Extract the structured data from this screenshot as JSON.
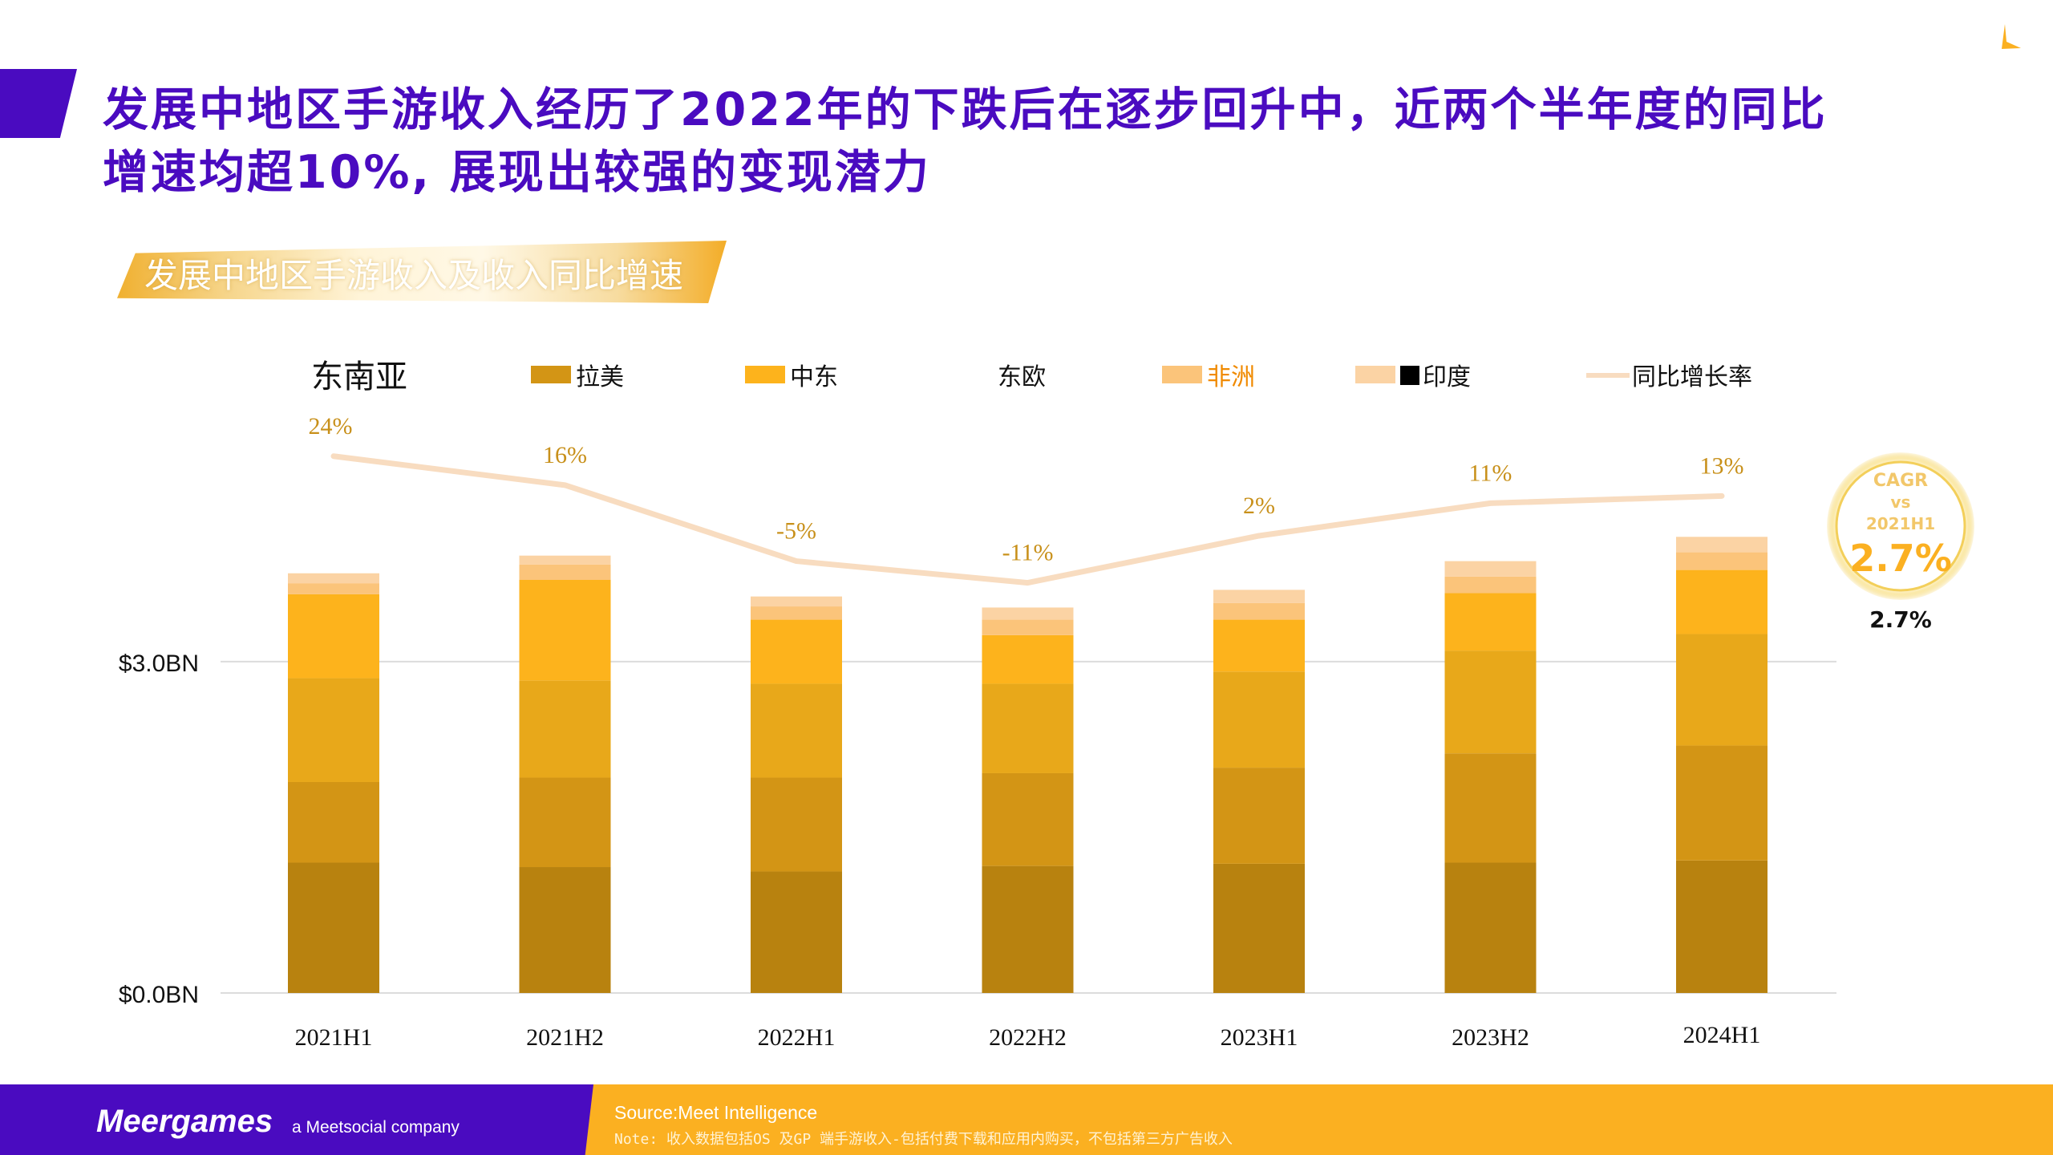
{
  "header": {
    "title_line1": "发展中地区手游收入经历了2022年的下跌后在逐步回升中，近两个半年度的同比",
    "title_line2": "增速均超10%, 展现出较强的变现潜力",
    "banner": "发展中地区手游收入及收入同比增速"
  },
  "badge": {
    "line1": "CAGR",
    "line2": "vs",
    "line3": "2021H1",
    "value": "2.7%"
  },
  "footer": {
    "brand": "Meergames",
    "brand_sub": "a Meetsocial company",
    "source": "Source:Meet Intelligence",
    "note": "Note: 收入数据包括OS  及GP 端手游收入-包括付费下载和应用内购买，不包括第三方广告收入"
  },
  "colors": {
    "brand_purple": "#4a0bc0",
    "footer_orange": "#fbb021",
    "label_gold": "#c8901a",
    "line_peach": "#f8dcc0"
  },
  "chart_data": {
    "type": "bar",
    "stacked": true,
    "title": "发展中地区手游收入及收入同比增速",
    "xlabel": "",
    "ylabel": "",
    "ylim": [
      0,
      4.5
    ],
    "yticks": [
      {
        "value": 0,
        "label": "$0.0BN"
      },
      {
        "value": 3,
        "label": "$3.0BN"
      }
    ],
    "grid": true,
    "legend_position": "top",
    "categories": [
      "2021H1",
      "2021H2",
      "2022H1",
      "2022H2",
      "2023H1",
      "2023H2",
      "2024H1"
    ],
    "series": [
      {
        "name": "东南亚",
        "color": "#b8820f",
        "values": [
          1.18,
          1.14,
          1.1,
          1.15,
          1.17,
          1.18,
          1.2
        ]
      },
      {
        "name": "拉美",
        "color": "#d39515",
        "values": [
          0.73,
          0.81,
          0.85,
          0.84,
          0.87,
          0.99,
          1.04
        ]
      },
      {
        "name": "中东",
        "color": "#e8a81a",
        "values": [
          0.94,
          0.88,
          0.85,
          0.81,
          0.87,
          0.93,
          1.01
        ]
      },
      {
        "name": "东欧",
        "color": "#fdb31c",
        "values": [
          0.76,
          0.91,
          0.58,
          0.44,
          0.47,
          0.52,
          0.58
        ]
      },
      {
        "name": "非洲",
        "color": "#fbc47a",
        "values": [
          0.1,
          0.14,
          0.12,
          0.14,
          0.15,
          0.15,
          0.16
        ]
      },
      {
        "name": "印度",
        "color": "#fbd3a4",
        "values": [
          0.09,
          0.08,
          0.09,
          0.11,
          0.12,
          0.14,
          0.14
        ]
      }
    ],
    "line_series": {
      "name": "同比增长率",
      "color": "#f8dcc0",
      "values": [
        24,
        16,
        -5,
        -11,
        2,
        11,
        13
      ],
      "labels": [
        "24%",
        "16%",
        "-5%",
        "-11%",
        "2%",
        "11%",
        "13%"
      ],
      "unit": "%"
    },
    "legend": [
      "东南亚",
      "拉美",
      "中东",
      "东欧",
      "非洲",
      "印度",
      "同比增长率"
    ]
  }
}
